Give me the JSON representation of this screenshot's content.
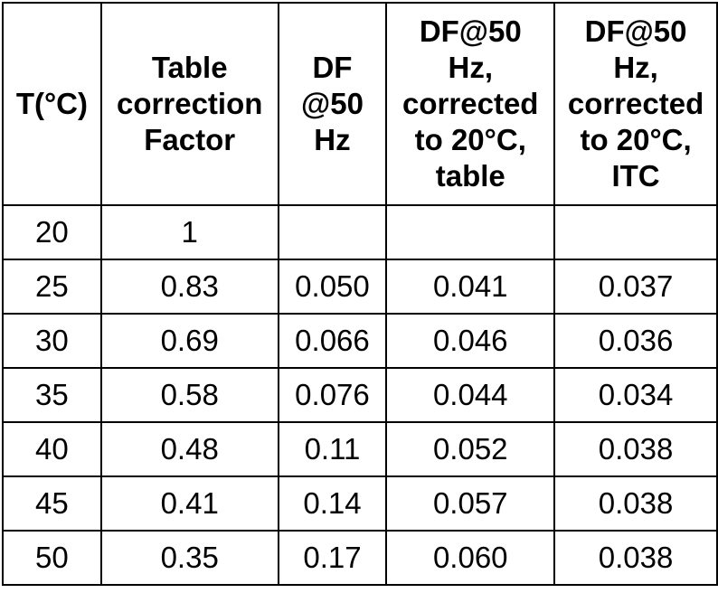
{
  "table": {
    "headers": [
      [
        "T(°C)"
      ],
      [
        "Table",
        "correction",
        "Factor"
      ],
      [
        "DF",
        "@50",
        "Hz"
      ],
      [
        "DF@50",
        "Hz,",
        "corrected",
        "to 20°C,",
        "table"
      ],
      [
        "DF@50",
        "Hz,",
        "corrected",
        "to 20°C,",
        "ITC"
      ]
    ],
    "rows": [
      [
        "20",
        "1",
        "",
        "",
        ""
      ],
      [
        "25",
        "0.83",
        "0.050",
        "0.041",
        "0.037"
      ],
      [
        "30",
        "0.69",
        "0.066",
        "0.046",
        "0.036"
      ],
      [
        "35",
        "0.58",
        "0.076",
        "0.044",
        "0.034"
      ],
      [
        "40",
        "0.48",
        "0.11",
        "0.052",
        "0.038"
      ],
      [
        "45",
        "0.41",
        "0.14",
        "0.057",
        "0.038"
      ],
      [
        "50",
        "0.35",
        "0.17",
        "0.060",
        "0.038"
      ]
    ]
  }
}
